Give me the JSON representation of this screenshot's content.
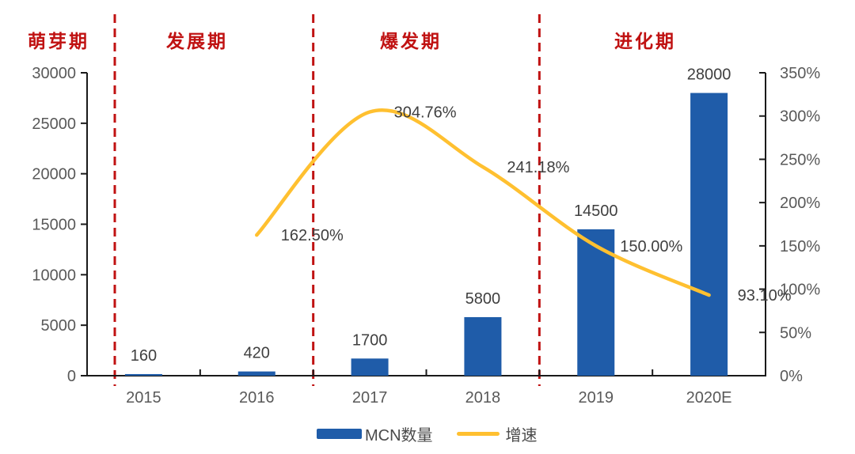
{
  "chart_data": {
    "type": "combo-bar-line",
    "title": "",
    "categories": [
      "2015",
      "2016",
      "2017",
      "2018",
      "2019",
      "2020E"
    ],
    "series": [
      {
        "name": "MCN数量",
        "type": "bar",
        "axis": "left",
        "color": "#1F5CA9",
        "values": [
          160,
          420,
          1700,
          5800,
          14500,
          28000
        ],
        "labels": [
          "160",
          "420",
          "1700",
          "5800",
          "14500",
          "28000"
        ]
      },
      {
        "name": "增速",
        "type": "line",
        "axis": "right",
        "color": "#FFC030",
        "values": [
          null,
          162.5,
          304.76,
          241.18,
          150.0,
          93.1
        ],
        "labels": [
          null,
          "162.50%",
          "304.76%",
          "241.18%",
          "150.00%",
          "93.10%"
        ]
      }
    ],
    "left_axis": {
      "min": 0,
      "max": 30000,
      "step": 5000,
      "ticks": [
        "0",
        "5000",
        "10000",
        "15000",
        "20000",
        "25000",
        "30000"
      ]
    },
    "right_axis": {
      "min": 0,
      "max": 350,
      "step": 50,
      "ticks": [
        "0%",
        "50%",
        "100%",
        "150%",
        "200%",
        "250%",
        "300%",
        "350%"
      ]
    },
    "phases": [
      {
        "label": "萌芽期"
      },
      {
        "label": "发展期"
      },
      {
        "label": "爆发期"
      },
      {
        "label": "进化期"
      }
    ],
    "dividers_slot_units": [
      0.245,
      2,
      4
    ],
    "legend": [
      "MCN数量",
      "增速"
    ],
    "grid": false,
    "legend_position": "bottom",
    "colors": {
      "bar": "#1F5CA9",
      "line": "#FFC030",
      "phase_red": "#C01212",
      "axis_text": "#595959",
      "value_text": "#3f3f3f",
      "axis_line": "#1a1a1a"
    }
  }
}
